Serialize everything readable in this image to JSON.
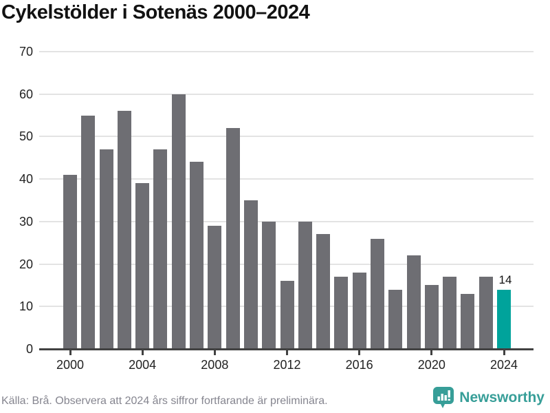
{
  "header": {
    "title": "Cykelstölder i Sotenäs 2000–2024"
  },
  "chart_data": {
    "type": "bar",
    "title": "Cykelstölder i Sotenäs 2000–2024",
    "categories": [
      "2000",
      "2001",
      "2002",
      "2003",
      "2004",
      "2005",
      "2006",
      "2007",
      "2008",
      "2009",
      "2010",
      "2011",
      "2012",
      "2013",
      "2014",
      "2015",
      "2016",
      "2017",
      "2018",
      "2019",
      "2020",
      "2021",
      "2022",
      "2023",
      "2024"
    ],
    "values": [
      41,
      55,
      47,
      56,
      39,
      47,
      60,
      44,
      29,
      52,
      35,
      30,
      16,
      30,
      27,
      17,
      18,
      26,
      14,
      22,
      15,
      17,
      13,
      17,
      14
    ],
    "xlabel": "",
    "ylabel": "",
    "ylim": [
      0,
      70
    ],
    "yticks": [
      0,
      10,
      20,
      30,
      40,
      50,
      60,
      70
    ],
    "xtick_labels": [
      "2000",
      "2004",
      "2008",
      "2012",
      "2016",
      "2020",
      "2024"
    ],
    "grid": true,
    "legend": false,
    "highlight_category": "2024",
    "annotations": [
      {
        "category": "2024",
        "text": "14"
      }
    ],
    "colors": {
      "bar": "#6e6e73",
      "highlight": "#00a39b",
      "grid": "#e3e3e3",
      "axis": "#414141",
      "tick_label": "#222222"
    }
  },
  "footer": {
    "source_note": "Källa: Brå. Observera att 2024 års siffror fortfarande är preliminära.",
    "brand": "Newsworthy",
    "brand_color": "#379e98"
  }
}
